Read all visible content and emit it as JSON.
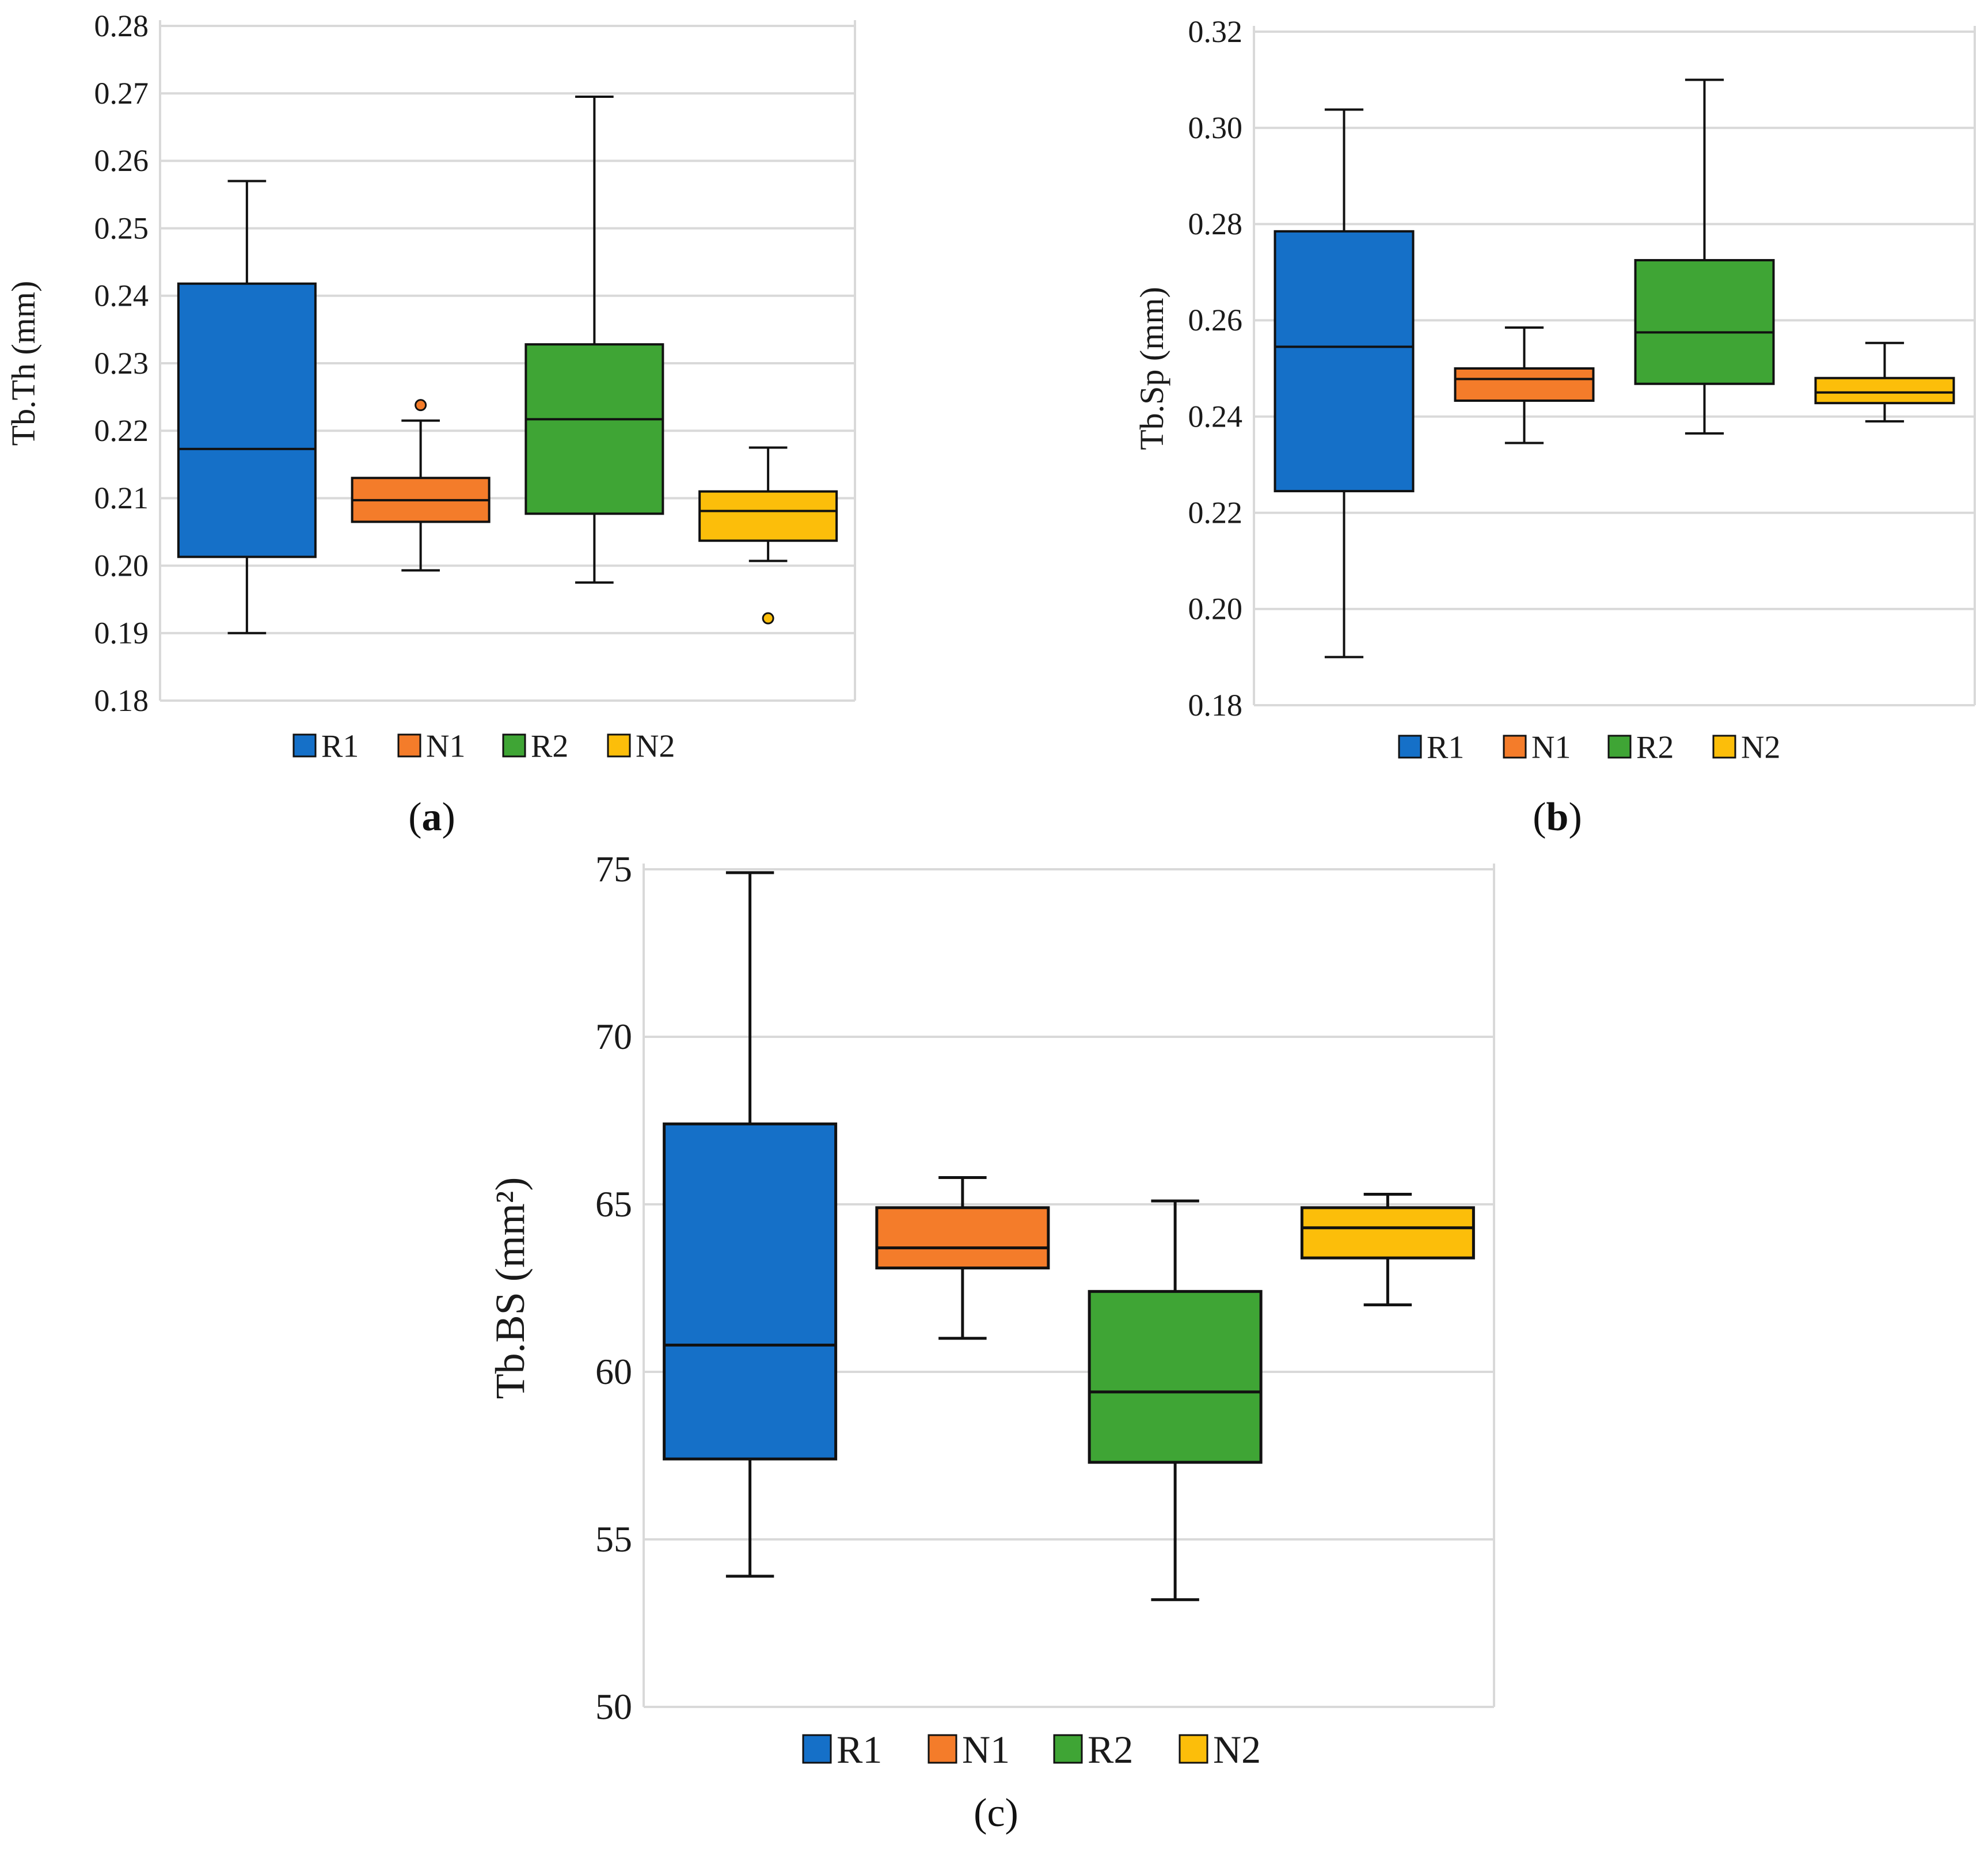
{
  "colors": {
    "R1": "#1570C8",
    "N1": "#F47C2A",
    "R2": "#3FA535",
    "N2": "#FCBE0A"
  },
  "legend": [
    "R1",
    "N1",
    "R2",
    "N2"
  ],
  "captions": {
    "a": "a",
    "b": "b",
    "c": "c"
  },
  "chart_data": [
    {
      "id": "a",
      "type": "box",
      "ylabel": "Tb.Th (mm)",
      "ylim": [
        0.18,
        0.28
      ],
      "yticks": [
        "0.18",
        "0.19",
        "0.20",
        "0.21",
        "0.22",
        "0.23",
        "0.24",
        "0.25",
        "0.26",
        "0.27",
        "0.28"
      ],
      "grid": true,
      "legend_position": "bottom",
      "series": [
        {
          "name": "R1",
          "min": 0.19,
          "q1": 0.2013,
          "median": 0.2173,
          "q3": 0.2418,
          "max": 0.257,
          "outliers": []
        },
        {
          "name": "N1",
          "min": 0.1993,
          "q1": 0.2065,
          "median": 0.2097,
          "q3": 0.213,
          "max": 0.2215,
          "outliers": [
            0.2238
          ]
        },
        {
          "name": "R2",
          "min": 0.1975,
          "q1": 0.2077,
          "median": 0.2217,
          "q3": 0.2328,
          "max": 0.2695,
          "outliers": []
        },
        {
          "name": "N2",
          "min": 0.2007,
          "q1": 0.2037,
          "median": 0.2081,
          "q3": 0.211,
          "max": 0.2175,
          "outliers": [
            0.1922
          ]
        }
      ]
    },
    {
      "id": "b",
      "type": "box",
      "ylabel": "Tb.Sp (mm)",
      "ylim": [
        0.18,
        0.32
      ],
      "yticks": [
        "0.18",
        "0.20",
        "0.22",
        "0.24",
        "0.26",
        "0.28",
        "0.30",
        "0.32"
      ],
      "grid": true,
      "legend_position": "bottom",
      "series": [
        {
          "name": "R1",
          "min": 0.19,
          "q1": 0.2245,
          "median": 0.2545,
          "q3": 0.2785,
          "max": 0.3038,
          "outliers": []
        },
        {
          "name": "N1",
          "min": 0.2345,
          "q1": 0.2433,
          "median": 0.2478,
          "q3": 0.25,
          "max": 0.2585,
          "outliers": []
        },
        {
          "name": "R2",
          "min": 0.2365,
          "q1": 0.2468,
          "median": 0.2575,
          "q3": 0.2725,
          "max": 0.31,
          "outliers": []
        },
        {
          "name": "N2",
          "min": 0.239,
          "q1": 0.2428,
          "median": 0.245,
          "q3": 0.248,
          "max": 0.2553,
          "outliers": []
        }
      ]
    },
    {
      "id": "c",
      "type": "box",
      "ylabel": "Tb.BS (mm²)",
      "ylim": [
        50,
        75
      ],
      "yticks": [
        "50",
        "55",
        "60",
        "65",
        "70",
        "75"
      ],
      "grid": true,
      "legend_position": "bottom",
      "series": [
        {
          "name": "R1",
          "min": 53.9,
          "q1": 57.4,
          "median": 60.8,
          "q3": 67.4,
          "max": 74.9,
          "outliers": []
        },
        {
          "name": "N1",
          "min": 61.0,
          "q1": 63.1,
          "median": 63.7,
          "q3": 64.9,
          "max": 65.8,
          "outliers": []
        },
        {
          "name": "R2",
          "min": 53.2,
          "q1": 57.3,
          "median": 59.4,
          "q3": 62.4,
          "max": 65.1,
          "outliers": []
        },
        {
          "name": "N2",
          "min": 62.0,
          "q1": 63.4,
          "median": 64.3,
          "q3": 64.9,
          "max": 65.3,
          "outliers": []
        }
      ]
    }
  ]
}
